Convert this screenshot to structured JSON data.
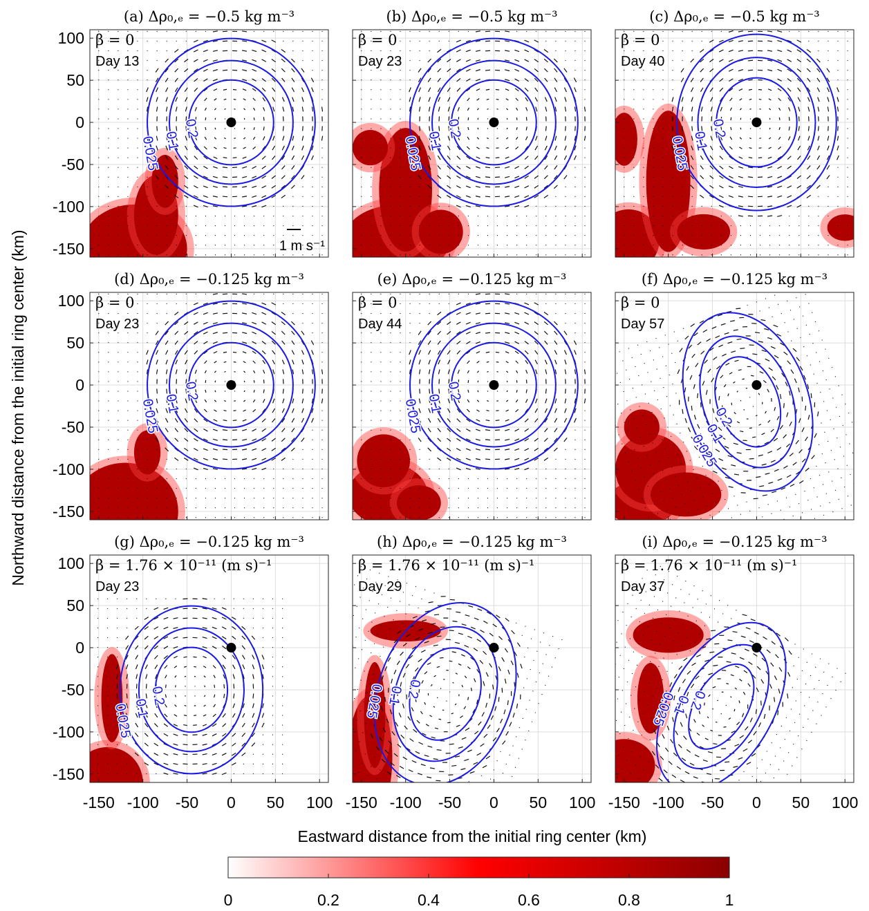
{
  "chart_data": [
    {
      "type": "ring",
      "title": "(a) Δρ₀,ₑ = −0.5 kg m⁻³",
      "beta": "β = 0",
      "day": "Day 13",
      "scale_label": "1 m s⁻¹",
      "contour_labels": [
        0.2,
        0.1,
        0.025
      ],
      "xlim": [
        -160,
        110
      ],
      "ylim": [
        -160,
        110
      ],
      "xticks": [
        -150,
        -100,
        -50,
        0,
        50,
        100
      ],
      "yticks": [
        -150,
        -100,
        -50,
        0,
        50,
        100
      ]
    },
    {
      "type": "ring",
      "title": "(b) Δρ₀,ₑ = −0.5 kg m⁻³",
      "beta": "β = 0",
      "day": "Day 23",
      "contour_labels": [
        0.2,
        0.1,
        0.025
      ],
      "xlim": [
        -160,
        110
      ],
      "ylim": [
        -160,
        110
      ],
      "xticks": [
        -150,
        -100,
        -50,
        0,
        50,
        100
      ],
      "yticks": [
        -150,
        -100,
        -50,
        0,
        50,
        100
      ]
    },
    {
      "type": "ring",
      "title": "(c) Δρ₀,ₑ = −0.5 kg m⁻³",
      "beta": "β = 0",
      "day": "Day 40",
      "contour_labels": [
        0.2,
        0.1,
        0.025
      ],
      "xlim": [
        -160,
        110
      ],
      "ylim": [
        -160,
        110
      ],
      "xticks": [
        -150,
        -100,
        -50,
        0,
        50,
        100
      ],
      "yticks": [
        -150,
        -100,
        -50,
        0,
        50,
        100
      ]
    },
    {
      "type": "ring",
      "title": "(d) Δρ₀,ₑ = −0.125 kg m⁻³",
      "beta": "β = 0",
      "day": "Day 23",
      "contour_labels": [
        0.2,
        0.1,
        0.025
      ],
      "xlim": [
        -160,
        110
      ],
      "ylim": [
        -160,
        110
      ],
      "xticks": [
        -150,
        -100,
        -50,
        0,
        50,
        100
      ],
      "yticks": [
        -150,
        -100,
        -50,
        0,
        50,
        100
      ]
    },
    {
      "type": "ring",
      "title": "(e) Δρ₀,ₑ = −0.125 kg m⁻³",
      "beta": "β = 0",
      "day": "Day 44",
      "contour_labels": [
        0.2,
        0.1,
        0.025
      ],
      "xlim": [
        -160,
        110
      ],
      "ylim": [
        -160,
        110
      ],
      "xticks": [
        -150,
        -100,
        -50,
        0,
        50,
        100
      ],
      "yticks": [
        -150,
        -100,
        -50,
        0,
        50,
        100
      ]
    },
    {
      "type": "ring",
      "title": "(f) Δρ₀,ₑ = −0.125 kg m⁻³",
      "beta": "β = 0",
      "day": "Day 57",
      "contour_labels": [
        0.2,
        0.1,
        0.025
      ],
      "xlim": [
        -160,
        110
      ],
      "ylim": [
        -160,
        110
      ],
      "xticks": [
        -150,
        -100,
        -50,
        0,
        50,
        100
      ],
      "yticks": [
        -150,
        -100,
        -50,
        0,
        50,
        100
      ]
    },
    {
      "type": "ring",
      "title": "(g) Δρ₀,ₑ = −0.125 kg m⁻³",
      "beta": "β = 1.76 × 10⁻¹¹ (m s)⁻¹",
      "day": "Day 23",
      "contour_labels": [
        0.2,
        0.1,
        0.025
      ],
      "xlim": [
        -160,
        110
      ],
      "ylim": [
        -160,
        110
      ],
      "xticks": [
        -150,
        -100,
        -50,
        0,
        50,
        100
      ],
      "yticks": [
        -150,
        -100,
        -50,
        0,
        50,
        100
      ]
    },
    {
      "type": "ring",
      "title": "(h) Δρ₀,ₑ = −0.125 kg m⁻³",
      "beta": "β = 1.76 × 10⁻¹¹ (m s)⁻¹",
      "day": "Day 29",
      "contour_labels": [
        0.2,
        0.1,
        0.025
      ],
      "xlim": [
        -160,
        110
      ],
      "ylim": [
        -160,
        110
      ],
      "xticks": [
        -150,
        -100,
        -50,
        0,
        50,
        100
      ],
      "yticks": [
        -150,
        -100,
        -50,
        0,
        50,
        100
      ]
    },
    {
      "type": "ring",
      "title": "(i) Δρ₀,ₑ = −0.125 kg m⁻³",
      "beta": "β = 1.76 × 10⁻¹¹ (m s)⁻¹",
      "day": "Day 37",
      "contour_labels": [
        0.2,
        0.1,
        0.025
      ],
      "xlim": [
        -160,
        110
      ],
      "ylim": [
        -160,
        110
      ],
      "xticks": [
        -150,
        -100,
        -50,
        0,
        50,
        100
      ],
      "yticks": [
        -150,
        -100,
        -50,
        0,
        50,
        100
      ]
    }
  ],
  "x_label": "Eastward distance from the initial ring center (km)",
  "y_label": "Northward distance from the initial ring center (km)",
  "colorbar": {
    "lim": [
      0,
      1
    ],
    "ticks": [
      0,
      0.2,
      0.4,
      0.6,
      0.8,
      1
    ],
    "colors": [
      "#ffffff",
      "#ff0000",
      "#8b0000"
    ]
  }
}
